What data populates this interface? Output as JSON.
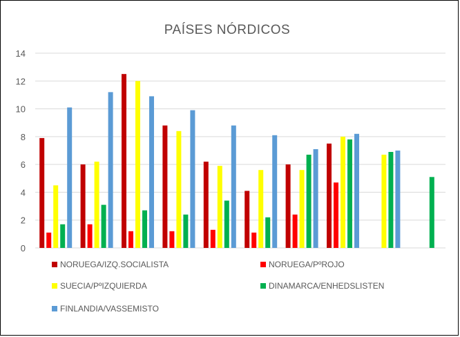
{
  "chart_data": {
    "type": "bar",
    "title": "PAÍSES NÓRDICOS",
    "xlabel": "",
    "ylabel": "",
    "ylim": [
      0,
      14
    ],
    "yticks": [
      0,
      2,
      4,
      6,
      8,
      10,
      12,
      14
    ],
    "grid": true,
    "legend_position": "bottom",
    "categories": [
      "",
      "",
      "",
      "",
      "",
      "",
      "",
      "",
      "",
      ""
    ],
    "series": [
      {
        "name": "NORUEGA/IZQ.SOCIALISTA",
        "color": "#c00000",
        "values": [
          7.9,
          6.0,
          12.5,
          8.8,
          6.2,
          4.1,
          6.0,
          7.5,
          null,
          null
        ]
      },
      {
        "name": "NORUEGA/PºROJO",
        "color": "#ff0000",
        "values": [
          1.1,
          1.7,
          1.2,
          1.2,
          1.3,
          1.1,
          2.4,
          4.7,
          null,
          null
        ]
      },
      {
        "name": "SUECIA/PºIZQUIERDA",
        "color": "#ffff00",
        "values": [
          4.5,
          6.2,
          12.0,
          8.4,
          5.9,
          5.6,
          5.6,
          8.0,
          6.7,
          null
        ]
      },
      {
        "name": "DINAMARCA/ENHEDSLISTEN",
        "color": "#00b050",
        "values": [
          1.7,
          3.1,
          2.7,
          2.4,
          3.4,
          2.2,
          6.7,
          7.8,
          6.9,
          5.1
        ]
      },
      {
        "name": "FINLANDIA/VASSEMISTO",
        "color": "#5b9bd5",
        "values": [
          10.1,
          11.2,
          10.9,
          9.9,
          8.8,
          8.1,
          7.1,
          8.2,
          7.0,
          null
        ]
      }
    ]
  }
}
